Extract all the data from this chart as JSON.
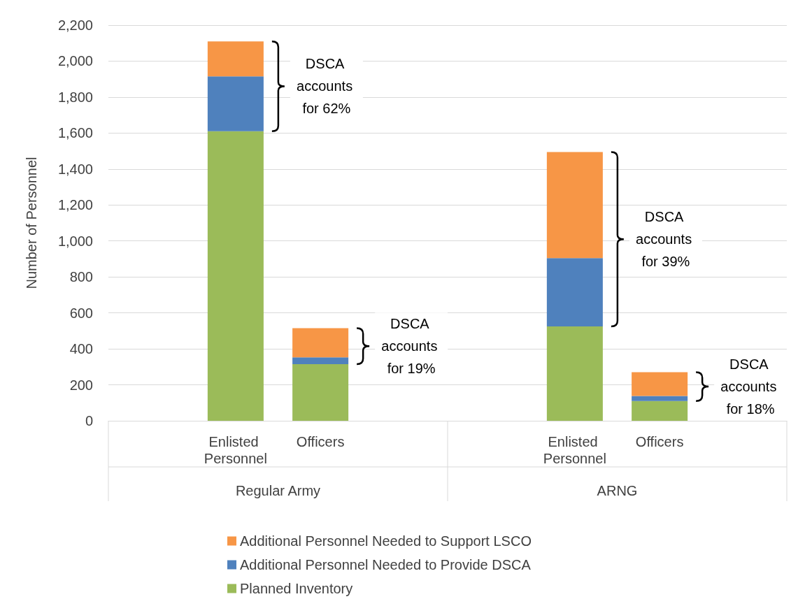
{
  "chart_data": {
    "type": "bar",
    "stacked": true,
    "ylabel": "Number of Personnel",
    "categories": [
      null,
      "Enlisted Personnel",
      "Officers",
      null,
      null,
      "Enlisted Personnel",
      "Officers",
      null
    ],
    "series": [
      {
        "name": "Planned Inventory",
        "color": "#9bbb59",
        "values": [
          null,
          1610,
          315,
          null,
          null,
          525,
          110,
          null
        ]
      },
      {
        "name": "Additional Personnel Needed to Provide DSCA",
        "color": "#4f81bd",
        "values": [
          null,
          305,
          38,
          null,
          null,
          380,
          28,
          null
        ]
      },
      {
        "name": "Additional Personnel Needed to Support LSCO",
        "color": "#f79646",
        "values": [
          null,
          195,
          162,
          null,
          null,
          590,
          132,
          null
        ]
      }
    ],
    "ylim": [
      0,
      2200
    ],
    "yticks": [
      0,
      200,
      400,
      600,
      800,
      {
        "value": 1000,
        "label": "1,000"
      },
      {
        "value": 1200,
        "label": "1,200"
      },
      {
        "value": 1400,
        "label": "1,400"
      },
      {
        "value": 1600,
        "label": "1,600"
      },
      {
        "value": 1800,
        "label": "1,800"
      },
      {
        "value": 2000,
        "label": "2,000"
      },
      {
        "value": 2200,
        "label": "2,200"
      }
    ],
    "grid": "y",
    "legend": "bottom",
    "annotations": [
      "DSCA accounts for 62%",
      "DSCA accounts for 19%",
      "DSCA accounts for 39%",
      "DSCA accounts for 18%",
      "Regular Army",
      "ARNG"
    ]
  }
}
